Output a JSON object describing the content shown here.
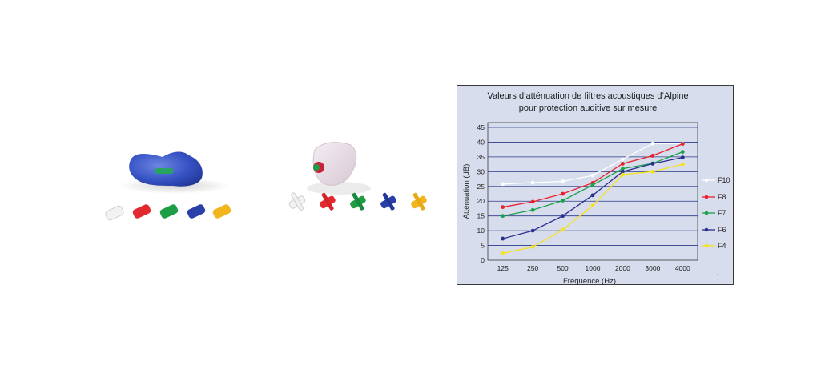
{
  "products": {
    "left_caption": "",
    "right_caption": ""
  },
  "chart_data": {
    "type": "line",
    "title_lines": [
      "Valeurs d’atténuation de filtres acoustiques d’Alpine",
      "pour protection auditive sur mesure"
    ],
    "xlabel": "Fréquence (Hz)",
    "ylabel": "Atténuation (dB)",
    "categories": [
      "125",
      "250",
      "500",
      "1000",
      "2000",
      "3000",
      "4000"
    ],
    "ylim": [
      0,
      45
    ],
    "yticks": [
      0,
      5,
      10,
      15,
      20,
      25,
      30,
      35,
      40,
      45
    ],
    "grid": "horizontal",
    "legend_placement": "right",
    "series": [
      {
        "name": "F10",
        "color": "#ffffff",
        "values": [
          25.8,
          26.3,
          26.7,
          28.7,
          34.2,
          39.5,
          39.5
        ]
      },
      {
        "name": "F8",
        "color": "#e8202a",
        "values": [
          18.0,
          19.8,
          22.5,
          26.2,
          32.7,
          35.4,
          39.4
        ]
      },
      {
        "name": "F7",
        "color": "#1aa24a",
        "values": [
          15.0,
          17.0,
          20.2,
          25.5,
          31.0,
          32.8,
          36.7
        ]
      },
      {
        "name": "F6",
        "color": "#2a2c8e",
        "values": [
          7.3,
          10.0,
          15.0,
          22.0,
          30.0,
          32.7,
          34.8
        ]
      },
      {
        "name": "F4",
        "color": "#f5e21c",
        "values": [
          2.3,
          4.5,
          10.3,
          18.5,
          29.0,
          30.0,
          32.5
        ]
      }
    ],
    "footnote": "."
  }
}
